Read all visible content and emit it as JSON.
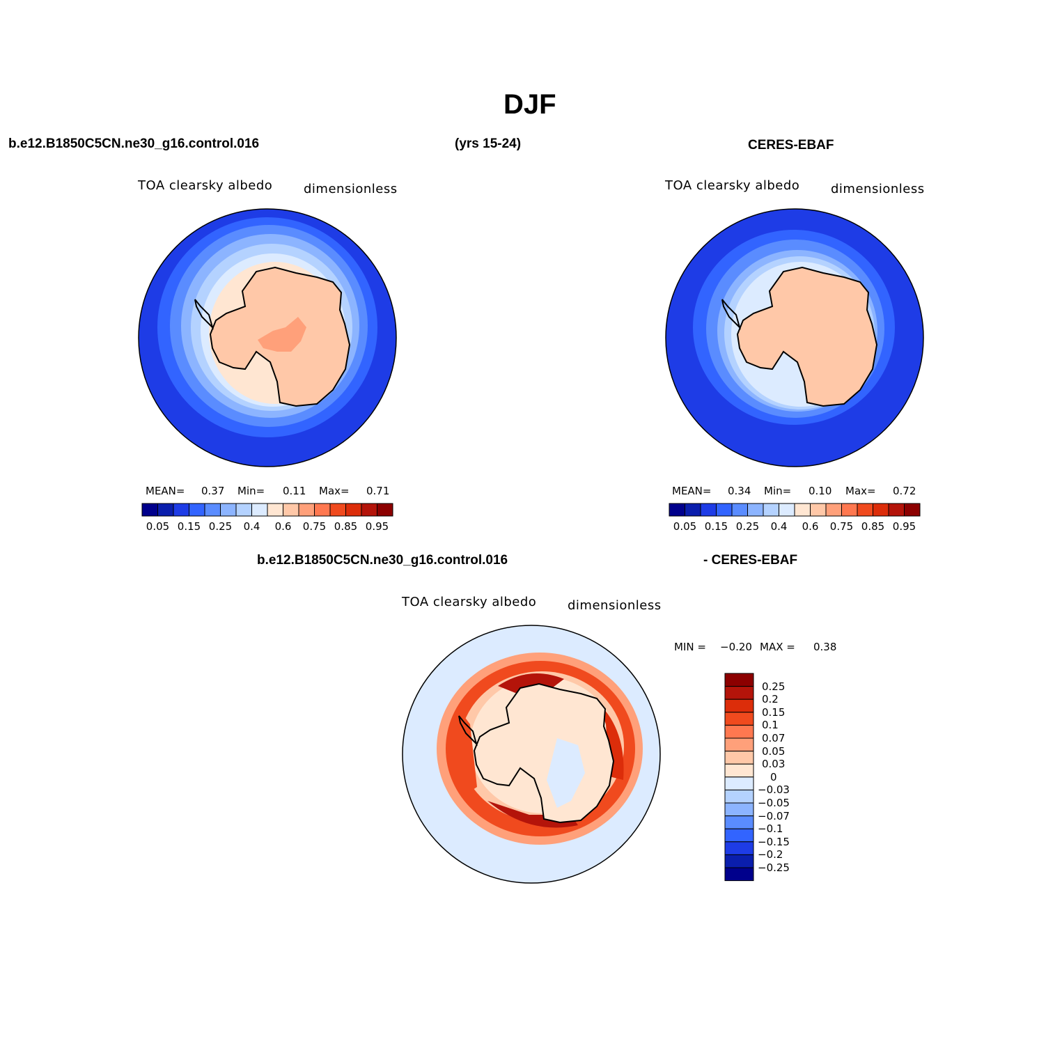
{
  "page": {
    "title": "DJF"
  },
  "headers": {
    "case_name": "b.e12.B1850C5CN.ne30_g16.control.016",
    "years": "(yrs 15-24)",
    "obs_name": "CERES-EBAF",
    "diff_case": "b.e12.B1850C5CN.ne30_g16.control.016",
    "diff_obs": "- CERES-EBAF"
  },
  "panels": [
    {
      "variable": "TOA clearsky albedo",
      "units": "dimensionless",
      "mean_label": "MEAN=",
      "mean": "0.37",
      "min_label": "Min=",
      "min": "0.11",
      "max_label": "Max=",
      "max": "0.71"
    },
    {
      "variable": "TOA clearsky albedo",
      "units": "dimensionless",
      "mean_label": "MEAN=",
      "mean": "0.34",
      "min_label": "Min=",
      "min": "0.10",
      "max_label": "Max=",
      "max": "0.72"
    }
  ],
  "diff_panel": {
    "variable": "TOA clearsky albedo",
    "units": "dimensionless",
    "min_label": "MIN =",
    "min": "−0.20",
    "max_label": "MAX =",
    "max": "0.38"
  },
  "chart_data": [
    {
      "type": "heatmap",
      "projection": "south-polar-stereographic",
      "colorbar_ticks": [
        "0.05",
        "0.15",
        "0.25",
        "0.4",
        "0.6",
        "0.75",
        "0.85",
        "0.95"
      ],
      "colorbar_colors": [
        "#00008c",
        "#0a1ead",
        "#1e3ce6",
        "#3264ff",
        "#5a8cff",
        "#8cb4ff",
        "#b4d2ff",
        "#dcebff",
        "#ffe6d2",
        "#ffc8a8",
        "#ffa07a",
        "#ff7850",
        "#f04a1e",
        "#dc2d0a",
        "#b4140a",
        "#8c0000"
      ]
    },
    {
      "type": "heatmap",
      "projection": "south-polar-stereographic",
      "colorbar_ticks": [
        "0.05",
        "0.15",
        "0.25",
        "0.4",
        "0.6",
        "0.75",
        "0.85",
        "0.95"
      ],
      "colorbar_colors": [
        "#00008c",
        "#0a1ead",
        "#1e3ce6",
        "#3264ff",
        "#5a8cff",
        "#8cb4ff",
        "#b4d2ff",
        "#dcebff",
        "#ffe6d2",
        "#ffc8a8",
        "#ffa07a",
        "#ff7850",
        "#f04a1e",
        "#dc2d0a",
        "#b4140a",
        "#8c0000"
      ]
    },
    {
      "type": "heatmap",
      "projection": "south-polar-stereographic",
      "colorbar_ticks": [
        "0.25",
        "0.2",
        "0.15",
        "0.1",
        "0.07",
        "0.05",
        "0.03",
        "0",
        "−0.03",
        "−0.05",
        "−0.07",
        "−0.1",
        "−0.15",
        "−0.2",
        "−0.25"
      ],
      "colorbar_colors": [
        "#8c0000",
        "#b4140a",
        "#dc2d0a",
        "#f04a1e",
        "#ff7850",
        "#ffa07a",
        "#ffc8a8",
        "#ffe6d2",
        "#dcebff",
        "#b4d2ff",
        "#8cb4ff",
        "#5a8cff",
        "#3264ff",
        "#1e3ce6",
        "#0a1ead",
        "#00008c"
      ]
    }
  ]
}
